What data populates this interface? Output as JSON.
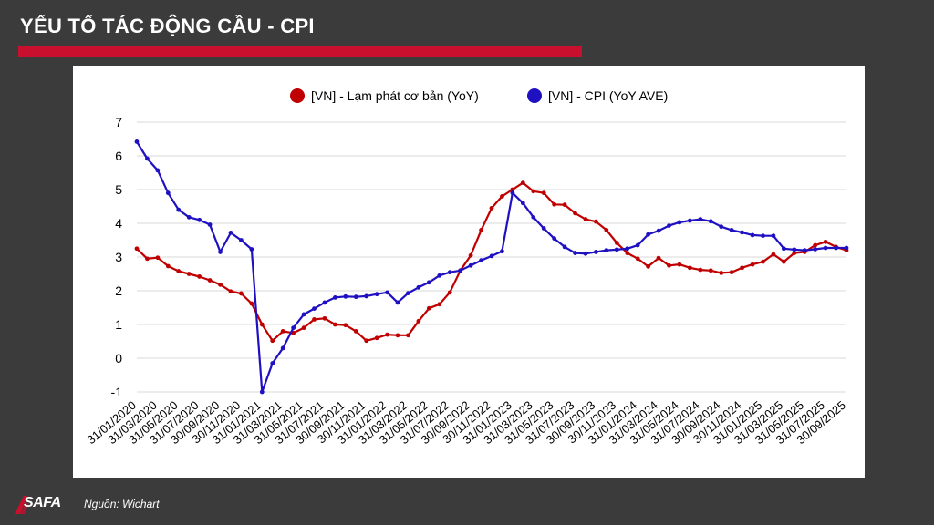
{
  "page": {
    "title": "YẾU TỐ TÁC ĐỘNG CẦU - CPI",
    "source": "Nguồn: Wichart",
    "logo_text": "SAFA",
    "accent": "#c8102e"
  },
  "chart_data": {
    "type": "line",
    "title": "",
    "xlabel": "",
    "ylabel": "",
    "ylim": [
      -1,
      7
    ],
    "yticks": [
      -1,
      0,
      1,
      2,
      3,
      4,
      5,
      6,
      7
    ],
    "grid": true,
    "legend_position": "top-center",
    "x": [
      "31/01/2020",
      "29/02/2020",
      "31/03/2020",
      "30/04/2020",
      "31/05/2020",
      "30/06/2020",
      "31/07/2020",
      "31/08/2020",
      "30/09/2020",
      "31/10/2020",
      "30/11/2020",
      "31/12/2020",
      "31/01/2021",
      "28/02/2021",
      "31/03/2021",
      "30/04/2021",
      "31/05/2021",
      "30/06/2021",
      "31/07/2021",
      "31/08/2021",
      "30/09/2021",
      "31/10/2021",
      "30/11/2021",
      "31/12/2021",
      "31/01/2022",
      "28/02/2022",
      "31/03/2022",
      "30/04/2022",
      "31/05/2022",
      "30/06/2022",
      "31/07/2022",
      "31/08/2022",
      "30/09/2022",
      "31/10/2022",
      "30/11/2022",
      "31/12/2022",
      "31/01/2023",
      "28/02/2023",
      "31/03/2023",
      "30/04/2023",
      "31/05/2023",
      "30/06/2023",
      "31/07/2023",
      "31/08/2023",
      "30/09/2023",
      "31/10/2023",
      "30/11/2023",
      "31/12/2023",
      "31/01/2024",
      "29/02/2024",
      "31/03/2024",
      "30/04/2024",
      "31/05/2024",
      "30/06/2024",
      "31/07/2024",
      "31/08/2024",
      "30/09/2024",
      "31/10/2024",
      "30/11/2024",
      "31/12/2024",
      "31/01/2025",
      "28/02/2025",
      "31/03/2025",
      "30/04/2025",
      "31/05/2025",
      "30/06/2025",
      "31/07/2025",
      "31/08/2025",
      "30/09/2025"
    ],
    "xtick_labels": [
      "31/01/2020",
      "31/03/2020",
      "31/05/2020",
      "31/07/2020",
      "30/09/2020",
      "30/11/2020",
      "31/01/2021",
      "31/03/2021",
      "31/05/2021",
      "31/07/2021",
      "30/09/2021",
      "30/11/2021",
      "31/01/2022",
      "31/03/2022",
      "31/05/2022",
      "31/07/2022",
      "30/09/2022",
      "30/11/2022",
      "31/01/2023",
      "31/03/2023",
      "31/05/2023",
      "31/07/2023",
      "30/09/2023",
      "30/11/2023",
      "31/01/2024",
      "31/03/2024",
      "31/05/2024",
      "31/07/2024",
      "30/09/2024",
      "30/11/2024",
      "31/01/2025",
      "31/03/2025",
      "31/05/2025",
      "31/07/2025",
      "30/09/2025"
    ],
    "series": [
      {
        "name": "[VN] - Lạm phát cơ bản (YoY)",
        "color": "#c00000",
        "values": [
          3.25,
          2.95,
          2.98,
          2.73,
          2.58,
          2.5,
          2.42,
          2.31,
          2.18,
          1.98,
          1.92,
          1.62,
          1.0,
          0.52,
          0.8,
          0.75,
          0.9,
          1.15,
          1.18,
          1.0,
          0.98,
          0.8,
          0.52,
          0.6,
          0.7,
          0.68,
          0.68,
          1.1,
          1.48,
          1.6,
          1.95,
          2.6,
          3.05,
          3.8,
          4.45,
          4.8,
          5.0,
          5.2,
          4.95,
          4.9,
          4.56,
          4.55,
          4.3,
          4.12,
          4.05,
          3.8,
          3.42,
          3.12,
          2.95,
          2.72,
          2.97,
          2.75,
          2.78,
          2.68,
          2.62,
          2.6,
          2.53,
          2.55,
          2.68,
          2.78,
          2.86,
          3.08,
          2.86,
          3.12,
          3.15,
          3.35,
          3.45,
          3.3,
          3.2
        ]
      },
      {
        "name": "[VN] - CPI (YoY AVE)",
        "color": "#1f10c2",
        "values": [
          6.42,
          5.92,
          5.57,
          4.9,
          4.4,
          4.18,
          4.1,
          3.96,
          3.15,
          3.72,
          3.5,
          3.23,
          -1.0,
          -0.15,
          0.3,
          0.9,
          1.3,
          1.47,
          1.65,
          1.8,
          1.83,
          1.82,
          1.84,
          1.9,
          1.95,
          1.65,
          1.93,
          2.1,
          2.25,
          2.45,
          2.55,
          2.6,
          2.75,
          2.9,
          3.03,
          3.17,
          4.9,
          4.6,
          4.18,
          3.85,
          3.55,
          3.3,
          3.12,
          3.1,
          3.15,
          3.2,
          3.22,
          3.25,
          3.35,
          3.67,
          3.78,
          3.93,
          4.03,
          4.08,
          4.12,
          4.06,
          3.9,
          3.8,
          3.73,
          3.65,
          3.63,
          3.63,
          3.25,
          3.22,
          3.2,
          3.23,
          3.27,
          3.27,
          3.27
        ]
      }
    ]
  }
}
